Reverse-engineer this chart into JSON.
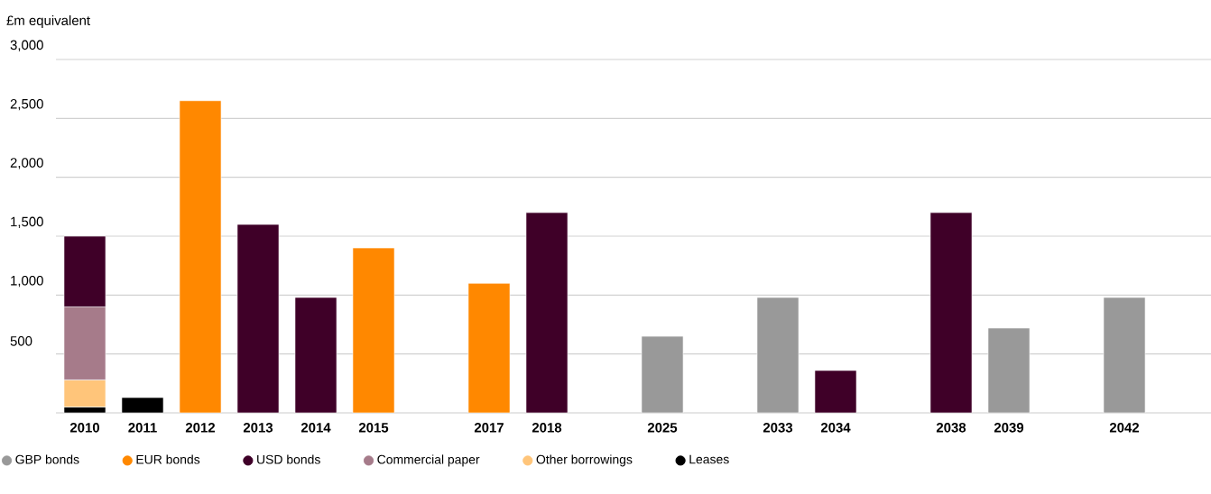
{
  "chart_data": {
    "type": "bar",
    "ylabel": "£m equivalent",
    "stacked": true,
    "categories": [
      "2010",
      "2011",
      "2012",
      "2013",
      "2014",
      "2015",
      null,
      "2017",
      "2018",
      null,
      "2025",
      null,
      "2033",
      "2034",
      null,
      "2038",
      "2039",
      null,
      "2042",
      null
    ],
    "series": [
      {
        "name": "Leases",
        "color": "#000000",
        "values": [
          50,
          130,
          null,
          null,
          null,
          null,
          null,
          null,
          null,
          null,
          null,
          null,
          null,
          null,
          null,
          null,
          null,
          null,
          null,
          null
        ]
      },
      {
        "name": "Other borrowings",
        "color": "#ffc57a",
        "values": [
          230,
          null,
          null,
          null,
          null,
          null,
          null,
          null,
          null,
          null,
          null,
          null,
          null,
          null,
          null,
          null,
          null,
          null,
          null,
          null
        ]
      },
      {
        "name": "Commercial paper",
        "color": "#a67b8a",
        "values": [
          620,
          null,
          null,
          null,
          null,
          null,
          null,
          null,
          null,
          null,
          null,
          null,
          null,
          null,
          null,
          null,
          null,
          null,
          null,
          null
        ]
      },
      {
        "name": "USD bonds",
        "color": "#3f0028",
        "values": [
          600,
          null,
          null,
          1600,
          980,
          null,
          null,
          null,
          1700,
          null,
          null,
          null,
          null,
          360,
          null,
          1700,
          null,
          null,
          null,
          null
        ]
      },
      {
        "name": "EUR bonds",
        "color": "#ff8800",
        "values": [
          null,
          null,
          2650,
          null,
          null,
          1400,
          null,
          1100,
          null,
          null,
          null,
          null,
          null,
          null,
          null,
          null,
          null,
          null,
          null,
          null
        ]
      },
      {
        "name": "GBP bonds",
        "color": "#999999",
        "values": [
          null,
          null,
          null,
          null,
          null,
          null,
          null,
          null,
          null,
          null,
          650,
          null,
          980,
          null,
          null,
          null,
          720,
          null,
          980,
          null
        ]
      }
    ],
    "ylim": [
      0,
      3000
    ],
    "yticks": [
      500,
      {
        "value": 1000,
        "label": "1,000"
      },
      {
        "value": 1500,
        "label": "1,500"
      },
      {
        "value": 2000,
        "label": "2,000"
      },
      {
        "value": 2500,
        "label": "2,500"
      },
      {
        "value": 3000,
        "label": "3,000"
      }
    ],
    "grid": "y",
    "legend": "bottom"
  }
}
